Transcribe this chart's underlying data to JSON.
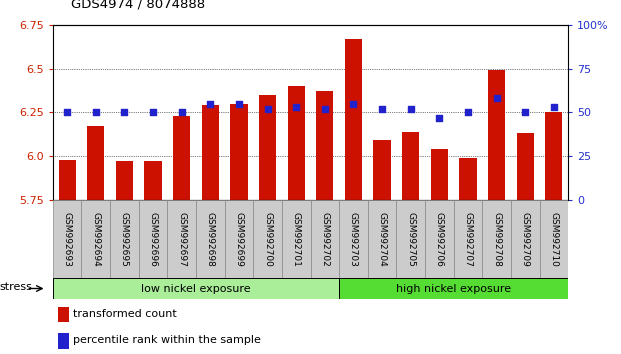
{
  "title": "GDS4974 / 8074888",
  "samples": [
    "GSM992693",
    "GSM992694",
    "GSM992695",
    "GSM992696",
    "GSM992697",
    "GSM992698",
    "GSM992699",
    "GSM992700",
    "GSM992701",
    "GSM992702",
    "GSM992703",
    "GSM992704",
    "GSM992705",
    "GSM992706",
    "GSM992707",
    "GSM992708",
    "GSM992709",
    "GSM992710"
  ],
  "red_values": [
    5.98,
    6.17,
    5.97,
    5.97,
    6.23,
    6.29,
    6.3,
    6.35,
    6.4,
    6.37,
    6.67,
    6.09,
    6.14,
    6.04,
    5.99,
    6.49,
    6.13,
    6.25
  ],
  "blue_values": [
    50,
    50,
    50,
    50,
    50,
    55,
    55,
    52,
    53,
    52,
    55,
    52,
    52,
    47,
    50,
    58,
    50,
    53
  ],
  "ymin": 5.75,
  "ymax": 6.75,
  "y_ticks": [
    5.75,
    6.0,
    6.25,
    6.5,
    6.75
  ],
  "y_right_ticks": [
    0,
    25,
    50,
    75,
    100
  ],
  "y_right_labels": [
    "0",
    "25",
    "50",
    "75",
    "100%"
  ],
  "group1_label": "low nickel exposure",
  "group2_label": "high nickel exposure",
  "group1_count": 10,
  "group2_count": 8,
  "legend1": "transformed count",
  "legend2": "percentile rank within the sample",
  "stress_label": "stress",
  "bar_color": "#cc1100",
  "dot_color": "#2222cc",
  "group1_color": "#aaee99",
  "group2_color": "#55dd33",
  "xticklabel_bg": "#cccccc",
  "axis_label_color_left": "#cc2200",
  "axis_label_color_right": "#2233cc"
}
